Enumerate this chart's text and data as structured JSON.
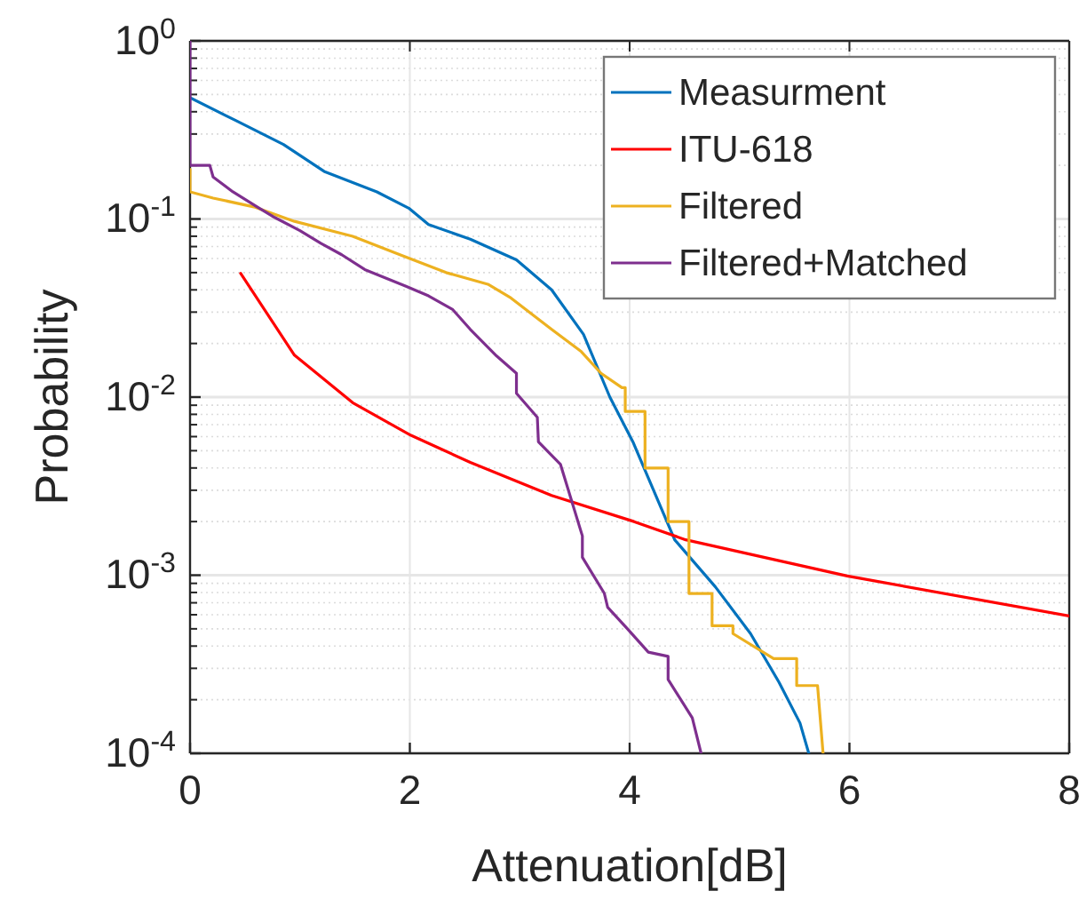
{
  "chart_data": {
    "type": "line",
    "xlabel": "Attenuation[dB]",
    "ylabel": "Probability",
    "xlim": [
      0,
      8
    ],
    "xticks": [
      0,
      2,
      4,
      6,
      8
    ],
    "ylim": [
      0.0001,
      1
    ],
    "log": true,
    "yticks": [
      {
        "value": 0.0001,
        "label": "10$^{-4}$"
      },
      {
        "value": 0.001,
        "label": "10$^{-3}$"
      },
      {
        "value": 0.01,
        "label": "10$^{-2}$"
      },
      {
        "value": 0.1,
        "label": "10$^{-1}$"
      },
      {
        "value": 1,
        "label": "10$^{0}$"
      }
    ],
    "grid": true,
    "legend": "top right",
    "line_style": "solid",
    "marker": "none",
    "series": [
      {
        "name": "Measurment",
        "color": "#0072bd",
        "x": [
          0,
          0.42,
          0.85,
          1.22,
          1.7,
          1.99,
          2.17,
          2.55,
          2.97,
          3.29,
          3.58,
          3.82,
          4.03,
          4.41,
          4.78,
          5.1,
          5.36,
          5.55,
          5.63
        ],
        "values": [
          0.48,
          0.356,
          0.262,
          0.185,
          0.142,
          0.115,
          0.093,
          0.077,
          0.059,
          0.04,
          0.0225,
          0.01,
          0.0056,
          0.00158,
          0.00086,
          0.00047,
          0.00025,
          0.000148,
          0.0001
        ]
      },
      {
        "name": "ITU-618",
        "color": "#ff0000",
        "x": [
          0.46,
          0.95,
          1.48,
          2.01,
          2.55,
          3.29,
          4.04,
          4.51,
          5.98,
          8
        ],
        "values": [
          0.0495,
          0.0172,
          0.0093,
          0.0061,
          0.0043,
          0.0028,
          0.002,
          0.00158,
          0.00099,
          0.00059
        ]
      },
      {
        "name": "Filtered",
        "color": "#edb120",
        "x": [
          0,
          0,
          0.21,
          0.58,
          0.95,
          1.48,
          1.91,
          2.33,
          2.71,
          2.92,
          3.29,
          3.56,
          3.74,
          3.93,
          3.96,
          3.96,
          4.14,
          4.14,
          4.35,
          4.35,
          4.54,
          4.54,
          4.75,
          4.75,
          4.94,
          4.94,
          5.31,
          5.52,
          5.52,
          5.71,
          5.76
        ],
        "values": [
          0.19,
          0.142,
          0.131,
          0.117,
          0.097,
          0.08,
          0.063,
          0.05,
          0.043,
          0.036,
          0.024,
          0.018,
          0.0136,
          0.0113,
          0.0113,
          0.0083,
          0.0083,
          0.004,
          0.004,
          0.002,
          0.002,
          0.00079,
          0.00079,
          0.00052,
          0.00052,
          0.00047,
          0.00034,
          0.00034,
          0.00024,
          0.00024,
          0.0001
        ]
      },
      {
        "name": "Filtered+Matched",
        "color": "#7e2f8e",
        "x": [
          0,
          0,
          0.18,
          0.21,
          0.39,
          0.61,
          0.77,
          1.0,
          1.19,
          1.38,
          1.59,
          1.96,
          2.17,
          2.39,
          2.55,
          2.79,
          2.97,
          2.97,
          3.16,
          3.17,
          3.37,
          3.57,
          3.57,
          3.77,
          3.8,
          3.98,
          4.17,
          4.35,
          4.35,
          4.57,
          4.65
        ],
        "values": [
          1,
          0.2,
          0.2,
          0.172,
          0.142,
          0.117,
          0.102,
          0.086,
          0.073,
          0.063,
          0.052,
          0.042,
          0.037,
          0.031,
          0.024,
          0.017,
          0.0136,
          0.0105,
          0.0077,
          0.0056,
          0.0042,
          0.00166,
          0.00126,
          0.00079,
          0.00066,
          0.0005,
          0.00037,
          0.00035,
          0.00026,
          0.000158,
          0.0001
        ]
      }
    ]
  }
}
